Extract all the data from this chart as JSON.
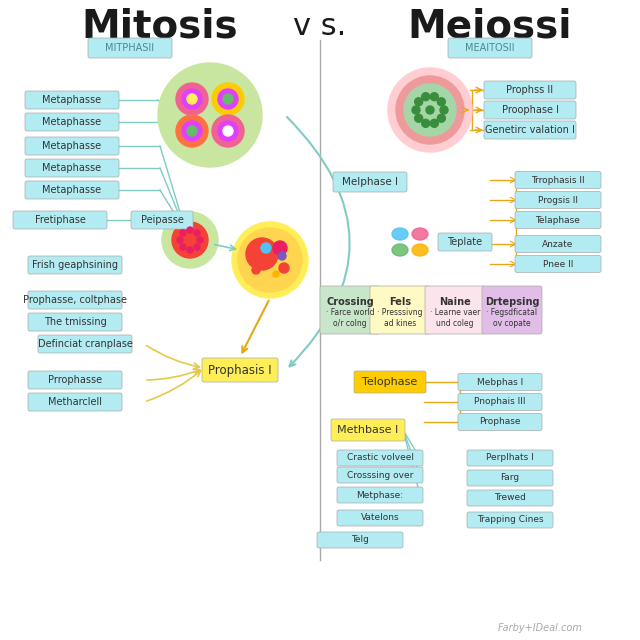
{
  "title_left": "Mitosis",
  "title_vs": "v s.",
  "title_right": "Meiossi",
  "subtitle_left": "MITPHASII",
  "subtitle_right": "MEAITOSII",
  "bg_color": "#ffffff",
  "title_color": "#1a1a1a",
  "subtitle_bg": "#b2ebf2",
  "subtitle_text_color": "#4a8a8a",
  "divider_color": "#888888",
  "left_labels": [
    "Metaphasse",
    "Metaphasse",
    "Metaphasse",
    "Metaphasse",
    "Metaphasse",
    "Fretiphase",
    "Frish geaphsining",
    "Prophasse, coltphase",
    "The tmissing",
    "Definciat cranplase",
    "Prrophasse",
    "Metharclell"
  ],
  "label_bg": "#b2ebf2",
  "label_text": "#333333",
  "prophasis_label": "Prophasis I",
  "prophasis_bg": "#ffee58",
  "prophasis_text": "#333333",
  "peipasse_label": "Peipasse",
  "peipasse_bg": "#b2ebf2",
  "right_labels_top": [
    "Prophss II",
    "Proophase I",
    "Genetirc valation I"
  ],
  "right_center_labels": [
    "Trrophasis II",
    "Progsis II",
    "Telaphase",
    "Anzate",
    "Pnee II"
  ],
  "melphase_label": "Melphase I",
  "telplate_label": "Teplate",
  "right_box_labels": [
    "Crossing",
    "Fels",
    "Naine",
    "Drtepsing"
  ],
  "right_box_sub": [
    "· Farce world\no/r colng",
    "· Presssivng\nad kines",
    "· Learne vaer\nund coleg",
    "· Fegsdficatal\nov copate"
  ],
  "telophase_label": "Telophase",
  "methbase_label": "Methbase I",
  "right_lower_labels": [
    "Mebphas I",
    "Pnophais III",
    "Prophase",
    "Crastic volveel",
    "Perplhats I",
    "Farg",
    "Crosssing over",
    "Trewed",
    "Metphase:",
    "Trapping Cines",
    "Vatelons",
    "Telg"
  ],
  "footer": "Farby+IDeal.com"
}
